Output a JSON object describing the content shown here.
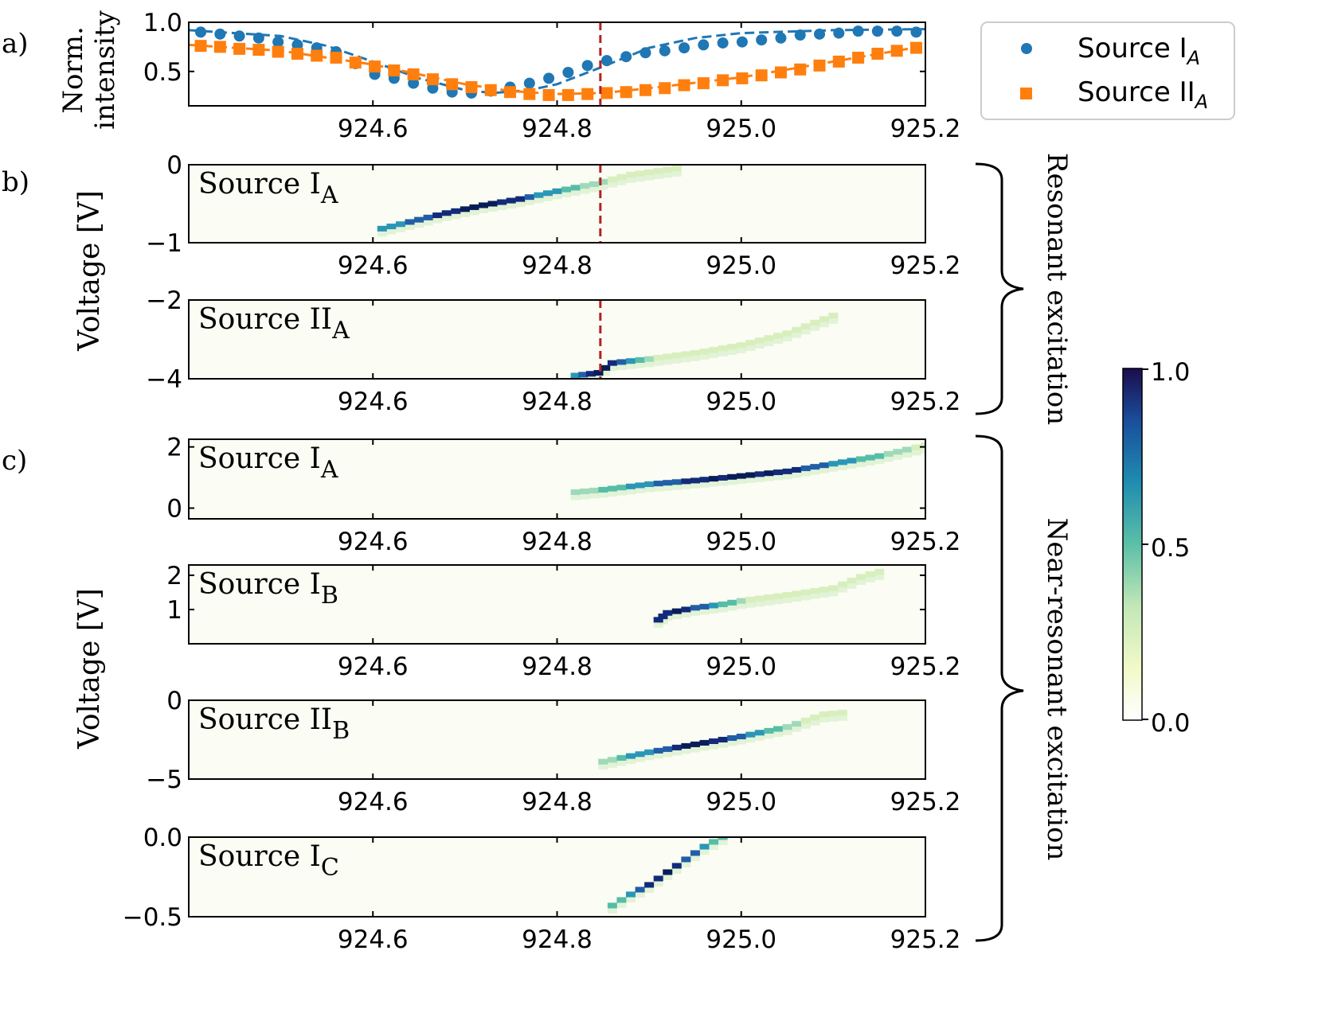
{
  "chart_data": {
    "type": "heatmap",
    "x_ticks": [
      "924.6",
      "924.8",
      "925.0",
      "925.2"
    ],
    "x_tick_values": [
      924.6,
      924.8,
      925.0,
      925.2
    ],
    "x_range": [
      924.4,
      925.2
    ],
    "marker_x": 924.847,
    "panel_labels": {
      "a": "a)",
      "b": "b)",
      "c": "c)"
    },
    "panel_a": {
      "type": "scatter",
      "ylabel_line1": "Norm.",
      "ylabel_line2": "intensity",
      "y_ticks": [
        "0.5",
        "1.0"
      ],
      "y_tick_values": [
        0.5,
        1.0
      ],
      "ylim": [
        0.15,
        1.0
      ],
      "series": [
        {
          "name_base": "Source I",
          "name_sub": "A",
          "color": "#1f77b4",
          "marker": "circle",
          "x": [
            924.413,
            924.434,
            924.455,
            924.476,
            924.497,
            924.518,
            924.539,
            924.56,
            924.581,
            924.602,
            924.623,
            924.644,
            924.665,
            924.686,
            924.707,
            924.728,
            924.749,
            924.77,
            924.791,
            924.812,
            924.833,
            924.854,
            924.875,
            924.896,
            924.917,
            924.938,
            924.959,
            924.98,
            925.001,
            925.022,
            925.043,
            925.064,
            925.085,
            925.106,
            925.127,
            925.148,
            925.169,
            925.19
          ],
          "y": [
            0.9,
            0.88,
            0.86,
            0.84,
            0.8,
            0.77,
            0.74,
            0.7,
            0.58,
            0.47,
            0.43,
            0.38,
            0.33,
            0.29,
            0.28,
            0.3,
            0.34,
            0.38,
            0.43,
            0.49,
            0.56,
            0.61,
            0.65,
            0.69,
            0.71,
            0.74,
            0.77,
            0.79,
            0.8,
            0.82,
            0.84,
            0.87,
            0.88,
            0.89,
            0.91,
            0.91,
            0.91,
            0.9
          ],
          "fit": [
            [
              924.4,
              0.92
            ],
            [
              924.5,
              0.86
            ],
            [
              924.55,
              0.76
            ],
            [
              924.6,
              0.6
            ],
            [
              924.65,
              0.43
            ],
            [
              924.7,
              0.31
            ],
            [
              924.73,
              0.28
            ],
            [
              924.77,
              0.31
            ],
            [
              924.8,
              0.37
            ],
            [
              924.85,
              0.55
            ],
            [
              924.9,
              0.74
            ],
            [
              924.95,
              0.84
            ],
            [
              925.0,
              0.89
            ],
            [
              925.1,
              0.92
            ],
            [
              925.2,
              0.93
            ]
          ]
        },
        {
          "name_base": "Source II",
          "name_sub": "A",
          "color": "#ff7f0e",
          "marker": "square",
          "x": [
            924.413,
            924.434,
            924.455,
            924.476,
            924.497,
            924.518,
            924.539,
            924.56,
            924.581,
            924.602,
            924.623,
            924.644,
            924.665,
            924.686,
            924.707,
            924.728,
            924.749,
            924.77,
            924.791,
            924.812,
            924.833,
            924.854,
            924.875,
            924.896,
            924.917,
            924.938,
            924.959,
            924.98,
            925.001,
            925.022,
            925.043,
            925.064,
            925.085,
            925.106,
            925.127,
            925.148,
            925.169,
            925.19
          ],
          "y": [
            0.76,
            0.75,
            0.73,
            0.72,
            0.7,
            0.68,
            0.66,
            0.64,
            0.59,
            0.55,
            0.51,
            0.47,
            0.42,
            0.37,
            0.34,
            0.31,
            0.29,
            0.27,
            0.26,
            0.26,
            0.27,
            0.28,
            0.29,
            0.31,
            0.33,
            0.36,
            0.38,
            0.41,
            0.43,
            0.46,
            0.49,
            0.52,
            0.56,
            0.6,
            0.64,
            0.68,
            0.71,
            0.74
          ],
          "fit": [
            [
              924.4,
              0.77
            ],
            [
              924.5,
              0.71
            ],
            [
              924.6,
              0.57
            ],
            [
              924.7,
              0.37
            ],
            [
              924.75,
              0.3
            ],
            [
              924.8,
              0.27
            ],
            [
              924.85,
              0.28
            ],
            [
              924.9,
              0.33
            ],
            [
              925.0,
              0.44
            ],
            [
              925.1,
              0.6
            ],
            [
              925.2,
              0.76
            ]
          ]
        }
      ],
      "legend_position": "right"
    },
    "panels": [
      {
        "id": "b1",
        "label_base": "Source I",
        "label_sub": "A",
        "y_ticks": [
          "0",
          "−1"
        ],
        "y_tick_values": [
          0,
          -1
        ],
        "ylim": [
          -1,
          0
        ],
        "line": [
          [
            924.61,
            -0.82
          ],
          [
            924.68,
            -0.62
          ],
          [
            924.72,
            -0.52
          ],
          [
            924.76,
            -0.44
          ],
          [
            924.8,
            -0.34
          ],
          [
            924.84,
            -0.25
          ],
          [
            924.88,
            -0.13
          ],
          [
            924.93,
            -0.05
          ]
        ],
        "peak_x": 924.71,
        "width_x": 0.16
      },
      {
        "id": "b2",
        "label_base": "Source II",
        "label_sub": "A",
        "y_ticks": [
          "−2",
          "−4"
        ],
        "y_tick_values": [
          -2,
          -4
        ],
        "ylim": [
          -4,
          -2
        ],
        "line": [
          [
            924.82,
            -3.92
          ],
          [
            924.845,
            -3.85
          ],
          [
            924.86,
            -3.6
          ],
          [
            924.9,
            -3.5
          ],
          [
            924.95,
            -3.35
          ],
          [
            925.0,
            -3.15
          ],
          [
            925.05,
            -2.85
          ],
          [
            925.1,
            -2.4
          ]
        ],
        "peak_x": 924.85,
        "width_x": 0.06
      },
      {
        "id": "c1",
        "label_base": "Source I",
        "label_sub": "A",
        "y_ticks": [
          "2",
          "0"
        ],
        "y_tick_values": [
          2,
          0
        ],
        "ylim": [
          -0.35,
          2.25
        ],
        "line": [
          [
            924.82,
            0.52
          ],
          [
            924.85,
            0.6
          ],
          [
            924.9,
            0.78
          ],
          [
            924.95,
            0.9
          ],
          [
            925.0,
            1.05
          ],
          [
            925.05,
            1.2
          ],
          [
            925.1,
            1.45
          ],
          [
            925.15,
            1.7
          ],
          [
            925.2,
            2.05
          ]
        ],
        "peak_x": 925.0,
        "width_x": 0.2
      },
      {
        "id": "c2",
        "label_base": "Source I",
        "label_sub": "B",
        "y_ticks": [
          "2",
          "1"
        ],
        "y_tick_values": [
          2,
          1
        ],
        "ylim": [
          0.0,
          2.3
        ],
        "line": [
          [
            924.91,
            0.7
          ],
          [
            924.92,
            0.9
          ],
          [
            924.95,
            1.05
          ],
          [
            924.98,
            1.15
          ],
          [
            925.0,
            1.25
          ],
          [
            925.05,
            1.42
          ],
          [
            925.1,
            1.62
          ],
          [
            925.13,
            1.95
          ],
          [
            925.15,
            2.1
          ]
        ],
        "peak_x": 924.93,
        "width_x": 0.08
      },
      {
        "id": "c3",
        "label_base": "Source II",
        "label_sub": "B",
        "y_ticks": [
          "0",
          "−5"
        ],
        "y_tick_values": [
          0,
          -5
        ],
        "ylim": [
          -5,
          0
        ],
        "line": [
          [
            924.85,
            -3.9
          ],
          [
            924.9,
            -3.3
          ],
          [
            924.95,
            -2.8
          ],
          [
            925.0,
            -2.3
          ],
          [
            925.05,
            -1.7
          ],
          [
            925.09,
            -0.9
          ],
          [
            925.11,
            -0.8
          ]
        ],
        "peak_x": 924.95,
        "width_x": 0.12
      },
      {
        "id": "c4",
        "label_base": "Source I",
        "label_sub": "C",
        "y_ticks": [
          "0.0",
          "−0.5"
        ],
        "y_tick_values": [
          0.0,
          -0.5
        ],
        "ylim": [
          -0.5,
          0.0
        ],
        "line": [
          [
            924.86,
            -0.43
          ],
          [
            924.88,
            -0.36
          ],
          [
            924.9,
            -0.3
          ],
          [
            924.92,
            -0.22
          ],
          [
            924.94,
            -0.14
          ],
          [
            924.96,
            -0.06
          ],
          [
            924.98,
            0.0
          ]
        ],
        "peak_x": 924.92,
        "width_x": 0.08
      }
    ],
    "y_label": "Voltage [V]",
    "bracket_labels": {
      "resonant": "Resonant excitation",
      "near": "Near-resonant excitation"
    },
    "colorbar": {
      "ticks": [
        "1.0",
        "0.5",
        "0.0"
      ],
      "tick_values": [
        1.0,
        0.5,
        0.0
      ],
      "colormap": "YlGnBu"
    }
  }
}
